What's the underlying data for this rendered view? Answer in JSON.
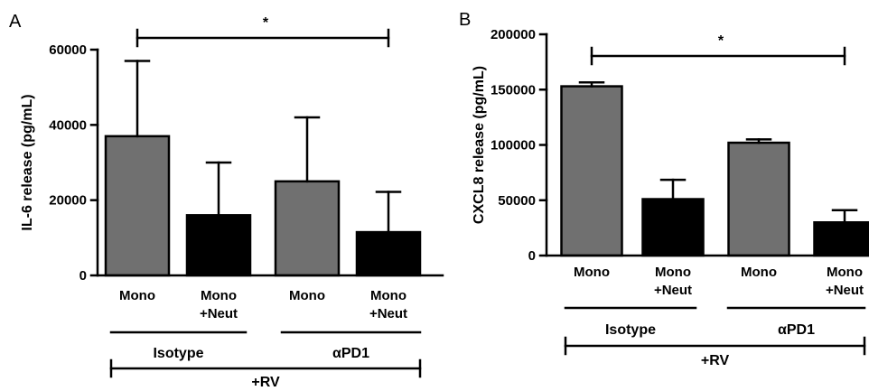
{
  "chart_data": [
    {
      "type": "bar",
      "panel_label": "A",
      "ylabel": "IL-6 release (pg/mL)",
      "ylim": [
        0,
        60000
      ],
      "yticks": [
        0,
        20000,
        40000,
        60000
      ],
      "categories": [
        "Mono",
        "Mono\n+Neut",
        "Mono",
        "Mono\n+Neut"
      ],
      "values": [
        37000,
        16000,
        25000,
        11500
      ],
      "errors": [
        20000,
        14000,
        17000,
        10700
      ],
      "bar_colors": [
        "#707070",
        "#000000",
        "#707070",
        "#000000"
      ],
      "groups": [
        {
          "label": "Isotype",
          "categories": [
            0,
            1
          ]
        },
        {
          "label": "αPD1",
          "categories": [
            2,
            3
          ]
        }
      ],
      "treatment_label": "+RV",
      "significance": {
        "from": 0,
        "to": 3,
        "label": "*"
      }
    },
    {
      "type": "bar",
      "panel_label": "B",
      "ylabel": "CXCL8 release (pg/mL)",
      "ylim": [
        0,
        200000
      ],
      "yticks": [
        0,
        50000,
        100000,
        150000,
        200000
      ],
      "categories": [
        "Mono",
        "Mono\n+Neut",
        "Mono",
        "Mono\n+Neut"
      ],
      "values": [
        153000,
        51000,
        102000,
        30000
      ],
      "errors": [
        3500,
        17500,
        3000,
        11000
      ],
      "bar_colors": [
        "#707070",
        "#000000",
        "#707070",
        "#000000"
      ],
      "groups": [
        {
          "label": "Isotype",
          "categories": [
            0,
            1
          ]
        },
        {
          "label": "αPD1",
          "categories": [
            2,
            3
          ]
        }
      ],
      "treatment_label": "+RV",
      "significance": {
        "from": 0,
        "to": 3,
        "label": "*"
      }
    }
  ]
}
